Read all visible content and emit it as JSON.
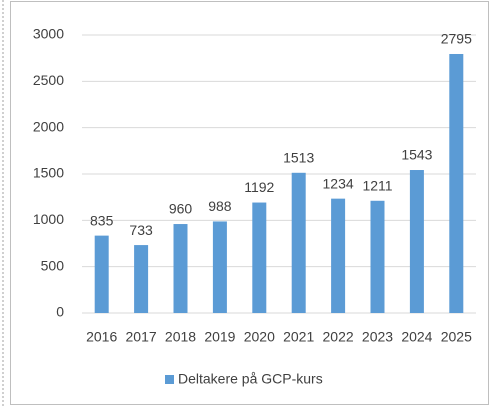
{
  "chart_data": {
    "type": "bar",
    "categories": [
      "2016",
      "2017",
      "2018",
      "2019",
      "2020",
      "2021",
      "2022",
      "2023",
      "2024",
      "2025"
    ],
    "series": [
      {
        "name": "Deltakere på GCP-kurs",
        "color": "#5b9bd5",
        "values": [
          835,
          733,
          960,
          988,
          1192,
          1513,
          1234,
          1211,
          1543,
          2795
        ]
      }
    ],
    "ylim": [
      0,
      3000
    ],
    "yticks": [
      0,
      500,
      1000,
      1500,
      2000,
      2500,
      3000
    ],
    "grid": true,
    "legend": "bottom"
  }
}
